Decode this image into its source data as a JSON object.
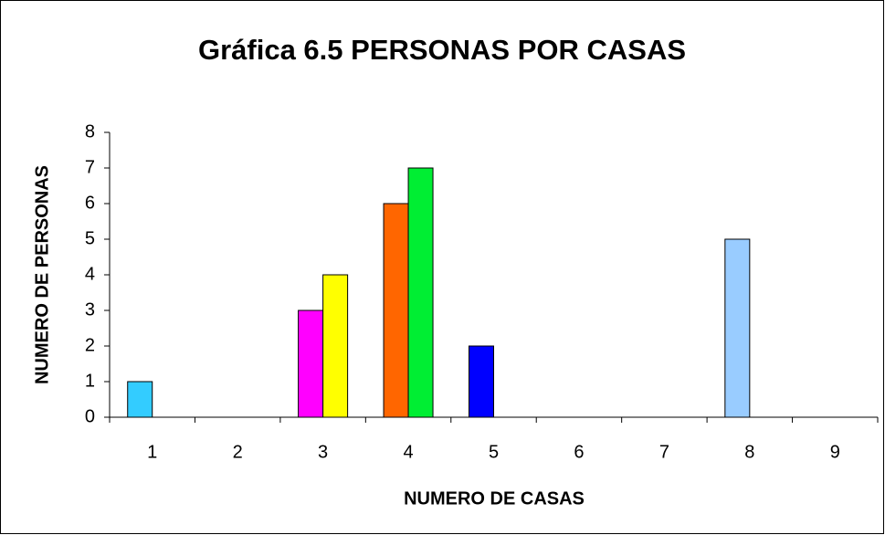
{
  "chart_data": {
    "type": "bar",
    "title": "Gráfica 6.5 PERSONAS POR CASAS",
    "x_label": "NUMERO DE CASAS",
    "y_label": "NUMERO DE PERSONAS",
    "categories": [
      "1",
      "2",
      "3",
      "4",
      "5",
      "6",
      "7",
      "8",
      "9"
    ],
    "series": [
      {
        "values": [
          1,
          null,
          3,
          6,
          2,
          null,
          null,
          5,
          null
        ],
        "colors": [
          "#33ccff",
          null,
          "#ff00ff",
          "#ff6600",
          "#0000ff",
          null,
          null,
          "#99ccff",
          null
        ]
      },
      {
        "values": [
          null,
          null,
          4,
          7,
          null,
          null,
          null,
          null,
          null
        ],
        "colors": [
          null,
          null,
          "#ffff00",
          "#00ee33",
          null,
          null,
          null,
          null,
          null
        ]
      }
    ],
    "ylim": [
      0,
      8
    ],
    "yticks": [
      0,
      1,
      2,
      3,
      4,
      5,
      6,
      7,
      8
    ],
    "grid": false
  }
}
